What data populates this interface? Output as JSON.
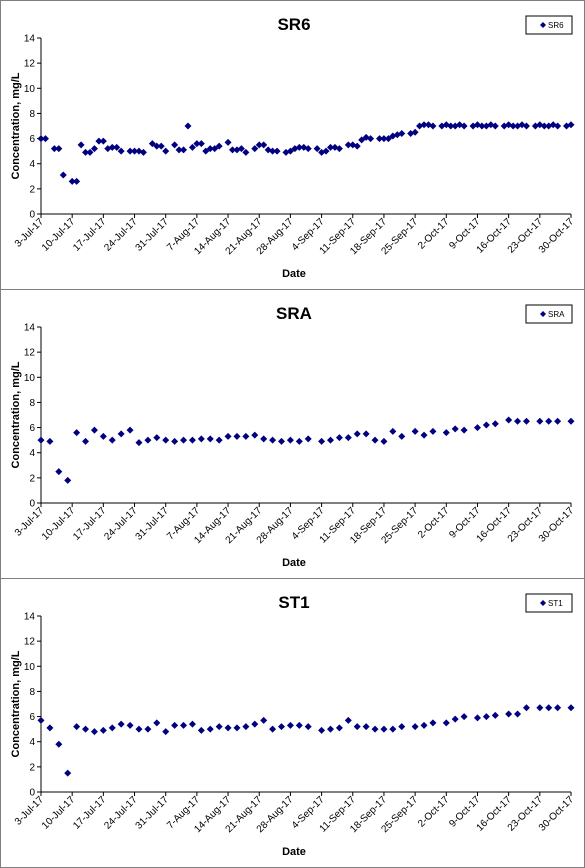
{
  "chart_data": [
    {
      "type": "scatter",
      "title": "SR6",
      "xlabel": "Date",
      "ylabel": "Concentration, mg/L",
      "ylim": [
        0,
        14
      ],
      "yticks": [
        0,
        2,
        4,
        6,
        8,
        10,
        12,
        14
      ],
      "xlim": [
        "2017-07-03",
        "2017-10-30"
      ],
      "xticks": [
        "3-Jul-17",
        "10-Jul-17",
        "17-Jul-17",
        "24-Jul-17",
        "31-Jul-17",
        "7-Aug-17",
        "14-Aug-17",
        "21-Aug-17",
        "28-Aug-17",
        "4-Sep-17",
        "11-Sep-17",
        "18-Sep-17",
        "25-Sep-17",
        "2-Oct-17",
        "9-Oct-17",
        "16-Oct-17",
        "23-Oct-17",
        "30-Oct-17"
      ],
      "grid": false,
      "legend_position": "top-right",
      "series": [
        {
          "name": "SR6",
          "color": "#000080",
          "marker": "diamond",
          "x": [
            "2017-07-03",
            "2017-07-04",
            "2017-07-06",
            "2017-07-07",
            "2017-07-08",
            "2017-07-10",
            "2017-07-11",
            "2017-07-12",
            "2017-07-13",
            "2017-07-14",
            "2017-07-15",
            "2017-07-16",
            "2017-07-17",
            "2017-07-18",
            "2017-07-19",
            "2017-07-20",
            "2017-07-21",
            "2017-07-23",
            "2017-07-24",
            "2017-07-25",
            "2017-07-26",
            "2017-07-28",
            "2017-07-29",
            "2017-07-30",
            "2017-07-31",
            "2017-08-02",
            "2017-08-03",
            "2017-08-04",
            "2017-08-05",
            "2017-08-06",
            "2017-08-07",
            "2017-08-08",
            "2017-08-09",
            "2017-08-10",
            "2017-08-11",
            "2017-08-12",
            "2017-08-14",
            "2017-08-15",
            "2017-08-16",
            "2017-08-17",
            "2017-08-18",
            "2017-08-20",
            "2017-08-21",
            "2017-08-22",
            "2017-08-23",
            "2017-08-24",
            "2017-08-25",
            "2017-08-27",
            "2017-08-28",
            "2017-08-29",
            "2017-08-30",
            "2017-08-31",
            "2017-09-01",
            "2017-09-03",
            "2017-09-04",
            "2017-09-05",
            "2017-09-06",
            "2017-09-07",
            "2017-09-08",
            "2017-09-10",
            "2017-09-11",
            "2017-09-12",
            "2017-09-13",
            "2017-09-14",
            "2017-09-15",
            "2017-09-17",
            "2017-09-18",
            "2017-09-19",
            "2017-09-20",
            "2017-09-21",
            "2017-09-22",
            "2017-09-24",
            "2017-09-25",
            "2017-09-26",
            "2017-09-27",
            "2017-09-28",
            "2017-09-29",
            "2017-10-01",
            "2017-10-02",
            "2017-10-03",
            "2017-10-04",
            "2017-10-05",
            "2017-10-06",
            "2017-10-08",
            "2017-10-09",
            "2017-10-10",
            "2017-10-11",
            "2017-10-12",
            "2017-10-13",
            "2017-10-15",
            "2017-10-16",
            "2017-10-17",
            "2017-10-18",
            "2017-10-19",
            "2017-10-20",
            "2017-10-22",
            "2017-10-23",
            "2017-10-24",
            "2017-10-25",
            "2017-10-26",
            "2017-10-27",
            "2017-10-29",
            "2017-10-30"
          ],
          "y": [
            6.0,
            6.0,
            5.2,
            5.2,
            3.1,
            2.6,
            2.6,
            5.5,
            4.9,
            4.9,
            5.2,
            5.8,
            5.8,
            5.2,
            5.3,
            5.3,
            5.0,
            5.0,
            5.0,
            5.0,
            4.9,
            5.6,
            5.4,
            5.4,
            5.0,
            5.5,
            5.1,
            5.1,
            7.0,
            5.3,
            5.6,
            5.6,
            5.0,
            5.2,
            5.2,
            5.4,
            5.7,
            5.1,
            5.1,
            5.2,
            4.9,
            5.2,
            5.5,
            5.5,
            5.1,
            5.0,
            5.0,
            4.9,
            5.0,
            5.2,
            5.3,
            5.3,
            5.2,
            5.2,
            4.9,
            5.0,
            5.3,
            5.3,
            5.2,
            5.5,
            5.5,
            5.4,
            5.9,
            6.1,
            6.0,
            6.0,
            6.0,
            6.0,
            6.2,
            6.3,
            6.4,
            6.4,
            6.5,
            7.0,
            7.1,
            7.1,
            7.0,
            7.0,
            7.1,
            7.0,
            7.0,
            7.1,
            7.0,
            7.0,
            7.1,
            7.0,
            7.0,
            7.1,
            7.0,
            7.0,
            7.1,
            7.0,
            7.0,
            7.1,
            7.0,
            7.0,
            7.1,
            7.0,
            7.0,
            7.1,
            7.0,
            7.0,
            7.1
          ]
        }
      ]
    },
    {
      "type": "scatter",
      "title": "SRA",
      "xlabel": "Date",
      "ylabel": "Concentration, mg/L",
      "ylim": [
        0,
        14
      ],
      "yticks": [
        0,
        2,
        4,
        6,
        8,
        10,
        12,
        14
      ],
      "xlim": [
        "2017-07-03",
        "2017-10-30"
      ],
      "xticks": [
        "3-Jul-17",
        "10-Jul-17",
        "17-Jul-17",
        "24-Jul-17",
        "31-Jul-17",
        "7-Aug-17",
        "14-Aug-17",
        "21-Aug-17",
        "28-Aug-17",
        "4-Sep-17",
        "11-Sep-17",
        "18-Sep-17",
        "25-Sep-17",
        "2-Oct-17",
        "9-Oct-17",
        "16-Oct-17",
        "23-Oct-17",
        "30-Oct-17"
      ],
      "grid": false,
      "legend_position": "top-right",
      "series": [
        {
          "name": "SRA",
          "color": "#000080",
          "marker": "diamond",
          "x": [
            "2017-07-03",
            "2017-07-05",
            "2017-07-07",
            "2017-07-09",
            "2017-07-11",
            "2017-07-13",
            "2017-07-15",
            "2017-07-17",
            "2017-07-19",
            "2017-07-21",
            "2017-07-23",
            "2017-07-25",
            "2017-07-27",
            "2017-07-29",
            "2017-07-31",
            "2017-08-02",
            "2017-08-04",
            "2017-08-06",
            "2017-08-08",
            "2017-08-10",
            "2017-08-12",
            "2017-08-14",
            "2017-08-16",
            "2017-08-18",
            "2017-08-20",
            "2017-08-22",
            "2017-08-24",
            "2017-08-26",
            "2017-08-28",
            "2017-08-30",
            "2017-09-01",
            "2017-09-04",
            "2017-09-06",
            "2017-09-08",
            "2017-09-10",
            "2017-09-12",
            "2017-09-14",
            "2017-09-16",
            "2017-09-18",
            "2017-09-20",
            "2017-09-22",
            "2017-09-25",
            "2017-09-27",
            "2017-09-29",
            "2017-10-02",
            "2017-10-04",
            "2017-10-06",
            "2017-10-09",
            "2017-10-11",
            "2017-10-13",
            "2017-10-16",
            "2017-10-18",
            "2017-10-20",
            "2017-10-23",
            "2017-10-25",
            "2017-10-27",
            "2017-10-30"
          ],
          "y": [
            5.0,
            4.9,
            2.5,
            1.8,
            5.6,
            4.9,
            5.8,
            5.3,
            5.0,
            5.5,
            5.8,
            4.8,
            5.0,
            5.2,
            5.0,
            4.9,
            5.0,
            5.0,
            5.1,
            5.1,
            5.0,
            5.3,
            5.3,
            5.3,
            5.4,
            5.1,
            5.0,
            4.9,
            5.0,
            4.9,
            5.1,
            4.9,
            5.0,
            5.2,
            5.2,
            5.5,
            5.5,
            5.0,
            4.9,
            5.7,
            5.3,
            5.7,
            5.4,
            5.7,
            5.6,
            5.9,
            5.8,
            6.0,
            6.2,
            6.3,
            6.6,
            6.5,
            6.5,
            6.5,
            6.5,
            6.5,
            6.5
          ]
        }
      ]
    },
    {
      "type": "scatter",
      "title": "ST1",
      "xlabel": "Date",
      "ylabel": "Concentration, mg/L",
      "ylim": [
        0,
        14
      ],
      "yticks": [
        0,
        2,
        4,
        6,
        8,
        10,
        12,
        14
      ],
      "xlim": [
        "2017-07-03",
        "2017-10-30"
      ],
      "xticks": [
        "3-Jul-17",
        "10-Jul-17",
        "17-Jul-17",
        "24-Jul-17",
        "31-Jul-17",
        "7-Aug-17",
        "14-Aug-17",
        "21-Aug-17",
        "28-Aug-17",
        "4-Sep-17",
        "11-Sep-17",
        "18-Sep-17",
        "25-Sep-17",
        "2-Oct-17",
        "9-Oct-17",
        "16-Oct-17",
        "23-Oct-17",
        "30-Oct-17"
      ],
      "grid": false,
      "legend_position": "top-right",
      "series": [
        {
          "name": "ST1",
          "color": "#000080",
          "marker": "diamond",
          "x": [
            "2017-07-03",
            "2017-07-05",
            "2017-07-07",
            "2017-07-09",
            "2017-07-11",
            "2017-07-13",
            "2017-07-15",
            "2017-07-17",
            "2017-07-19",
            "2017-07-21",
            "2017-07-23",
            "2017-07-25",
            "2017-07-27",
            "2017-07-29",
            "2017-07-31",
            "2017-08-02",
            "2017-08-04",
            "2017-08-06",
            "2017-08-08",
            "2017-08-10",
            "2017-08-12",
            "2017-08-14",
            "2017-08-16",
            "2017-08-18",
            "2017-08-20",
            "2017-08-22",
            "2017-08-24",
            "2017-08-26",
            "2017-08-28",
            "2017-08-30",
            "2017-09-01",
            "2017-09-04",
            "2017-09-06",
            "2017-09-08",
            "2017-09-10",
            "2017-09-12",
            "2017-09-14",
            "2017-09-16",
            "2017-09-18",
            "2017-09-20",
            "2017-09-22",
            "2017-09-25",
            "2017-09-27",
            "2017-09-29",
            "2017-10-02",
            "2017-10-04",
            "2017-10-06",
            "2017-10-09",
            "2017-10-11",
            "2017-10-13",
            "2017-10-16",
            "2017-10-18",
            "2017-10-20",
            "2017-10-23",
            "2017-10-25",
            "2017-10-27",
            "2017-10-30"
          ],
          "y": [
            5.7,
            5.1,
            3.8,
            1.5,
            5.2,
            5.0,
            4.8,
            4.9,
            5.1,
            5.4,
            5.3,
            5.0,
            5.0,
            5.5,
            4.8,
            5.3,
            5.3,
            5.4,
            4.9,
            5.0,
            5.2,
            5.1,
            5.1,
            5.2,
            5.4,
            5.7,
            5.0,
            5.2,
            5.3,
            5.3,
            5.2,
            4.9,
            5.0,
            5.1,
            5.7,
            5.2,
            5.2,
            5.0,
            5.0,
            5.0,
            5.2,
            5.2,
            5.3,
            5.5,
            5.5,
            5.8,
            6.0,
            5.9,
            6.0,
            6.1,
            6.2,
            6.2,
            6.7,
            6.7,
            6.7,
            6.7,
            6.7
          ]
        }
      ]
    }
  ]
}
